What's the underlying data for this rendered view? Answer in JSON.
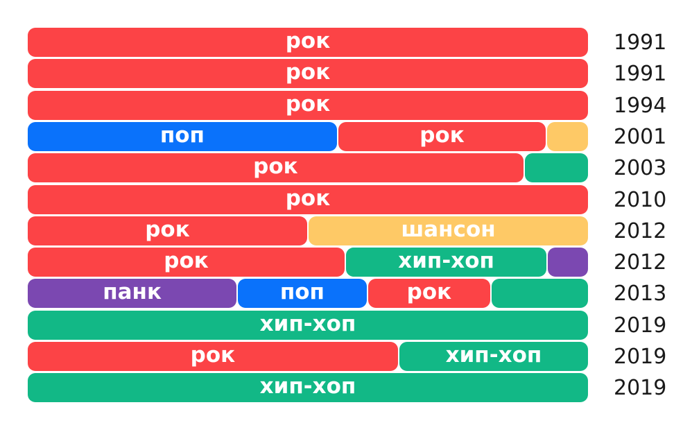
{
  "chart_data": {
    "type": "bar",
    "stacked": true,
    "orientation": "horizontal",
    "normalized": true,
    "colors": {
      "рок": "#fc4346",
      "поп": "#0a72fb",
      "шансон": "#fec966",
      "хип-хоп": "#12b886",
      "панк": "#7b48b1"
    },
    "rows": [
      {
        "year": "1991",
        "segments": [
          {
            "genre": "рок",
            "share": 1.0,
            "label": "рок"
          }
        ]
      },
      {
        "year": "1991",
        "segments": [
          {
            "genre": "рок",
            "share": 1.0,
            "label": "рок"
          }
        ]
      },
      {
        "year": "1994",
        "segments": [
          {
            "genre": "рок",
            "share": 1.0,
            "label": "рок"
          }
        ]
      },
      {
        "year": "2001",
        "segments": [
          {
            "genre": "поп",
            "share": 0.553,
            "label": "поп"
          },
          {
            "genre": "рок",
            "share": 0.373,
            "label": "рок"
          },
          {
            "genre": "шансон",
            "share": 0.074,
            "label": ""
          }
        ]
      },
      {
        "year": "2003",
        "segments": [
          {
            "genre": "рок",
            "share": 0.886,
            "label": "рок"
          },
          {
            "genre": "хип-хоп",
            "share": 0.114,
            "label": ""
          }
        ]
      },
      {
        "year": "2010",
        "segments": [
          {
            "genre": "рок",
            "share": 1.0,
            "label": "рок"
          }
        ]
      },
      {
        "year": "2012",
        "segments": [
          {
            "genre": "рок",
            "share": 0.5,
            "label": "рок"
          },
          {
            "genre": "шансон",
            "share": 0.5,
            "label": "шансон"
          }
        ]
      },
      {
        "year": "2012",
        "segments": [
          {
            "genre": "рок",
            "share": 0.567,
            "label": "рок"
          },
          {
            "genre": "хип-хоп",
            "share": 0.36,
            "label": "хип-хоп"
          },
          {
            "genre": "панк",
            "share": 0.073,
            "label": ""
          }
        ]
      },
      {
        "year": "2013",
        "segments": [
          {
            "genre": "панк",
            "share": 0.374,
            "label": "панк"
          },
          {
            "genre": "поп",
            "share": 0.232,
            "label": "поп"
          },
          {
            "genre": "рок",
            "share": 0.221,
            "label": "рок"
          },
          {
            "genre": "хип-хоп",
            "share": 0.173,
            "label": ""
          }
        ]
      },
      {
        "year": "2019",
        "segments": [
          {
            "genre": "хип-хоп",
            "share": 1.0,
            "label": "хип-хоп"
          }
        ]
      },
      {
        "year": "2019",
        "segments": [
          {
            "genre": "рок",
            "share": 0.662,
            "label": "рок"
          },
          {
            "genre": "хип-хоп",
            "share": 0.338,
            "label": "хип-хоп"
          }
        ]
      },
      {
        "year": "2019",
        "segments": [
          {
            "genre": "хип-хоп",
            "share": 1.0,
            "label": "хип-хоп"
          }
        ]
      }
    ]
  }
}
